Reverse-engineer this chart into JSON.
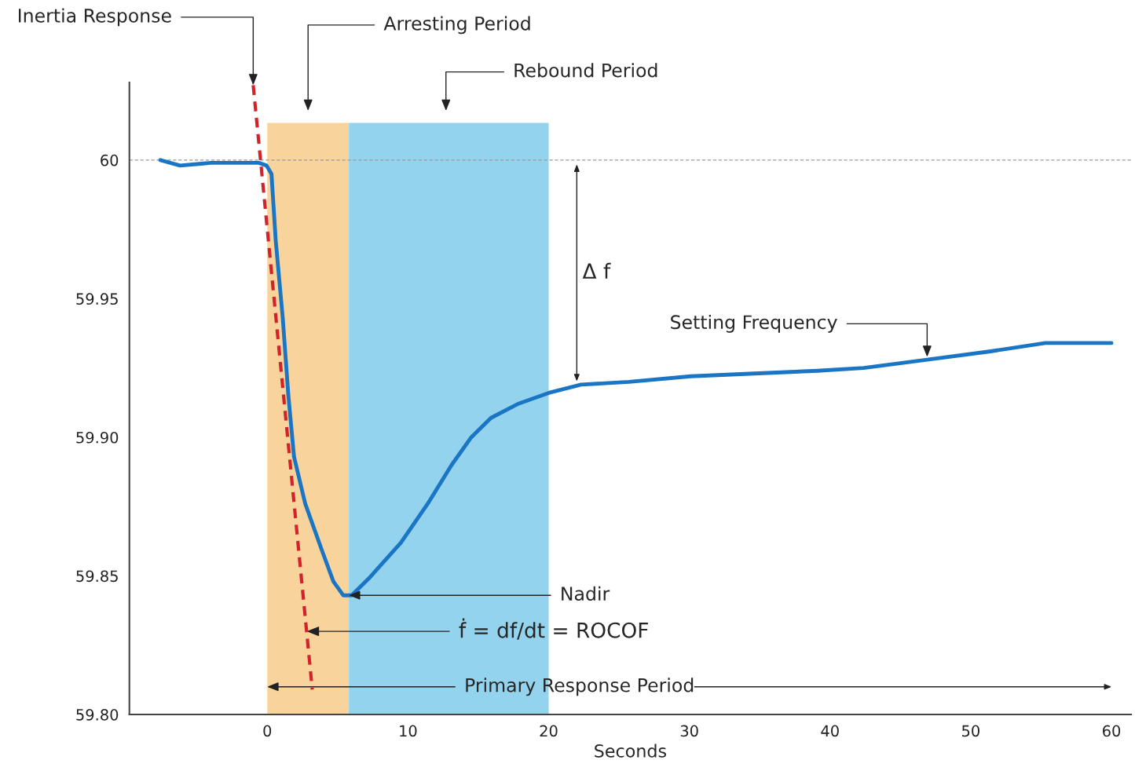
{
  "chart_data": {
    "type": "line",
    "xlabel": "Seconds",
    "xlim": [
      -9.8,
      61.4
    ],
    "ylim": [
      59.8,
      60.028
    ],
    "xticks": [
      0,
      10,
      20,
      30,
      40,
      50,
      60
    ],
    "yticks": [
      60,
      59.95,
      {
        "value": 59.9,
        "label": "59.90"
      },
      59.85,
      {
        "value": 59.8,
        "label": "59.80"
      }
    ],
    "grid": false,
    "series": [
      {
        "color": "#1a75c4",
        "line_style": "solid",
        "x": [
          -7.6,
          -6.2,
          -4.0,
          -0.6,
          -0.05,
          0.3,
          0.6,
          1.1,
          1.5,
          1.9,
          2.7,
          3.9,
          4.7,
          5.4,
          6.0,
          7.2,
          9.5,
          11.4,
          13.1,
          14.5,
          15.9,
          17.8,
          20.0,
          22.3,
          25.7,
          30.1,
          34.6,
          39.1,
          42.4,
          46.9,
          51.4,
          55.3,
          60.0
        ],
        "values": [
          60.0,
          59.998,
          59.999,
          59.999,
          59.998,
          59.995,
          59.971,
          59.943,
          59.915,
          59.893,
          59.876,
          59.859,
          59.848,
          59.843,
          59.843,
          59.849,
          59.862,
          59.876,
          59.89,
          59.9,
          59.907,
          59.912,
          59.916,
          59.919,
          59.92,
          59.922,
          59.923,
          59.924,
          59.925,
          59.928,
          59.931,
          59.934,
          59.934
        ]
      },
      {
        "color": "#d2232a",
        "line_style": "dashed",
        "x": [
          -1.0,
          3.2
        ],
        "values": [
          60.027,
          59.809
        ]
      }
    ],
    "ref_lines": [
      {
        "axis": "y",
        "value": 60,
        "color": "#999999",
        "line_style": "dashed"
      }
    ],
    "bands": [
      {
        "axis": "x",
        "from": 0,
        "to": 5.8,
        "color": "#f8d49c"
      },
      {
        "axis": "x",
        "from": 5.8,
        "to": 20,
        "color": "#94d3ee"
      }
    ],
    "annotations": [
      {
        "text": "Inertia Response",
        "x": -1.0,
        "y": 60.027
      },
      "Arresting Period",
      "Rebound Period",
      "Δ f",
      {
        "text": "Setting Frequency",
        "x": 46.9,
        "y": 59.929
      },
      {
        "text": "Nadir",
        "x": 5.8,
        "y": 59.843
      },
      {
        "text": "ḟ = df/dt = ROCOF",
        "x": 2.8,
        "y": 59.83
      },
      {
        "text": "Primary Response Period",
        "x": 0,
        "y": 59.81
      }
    ]
  }
}
